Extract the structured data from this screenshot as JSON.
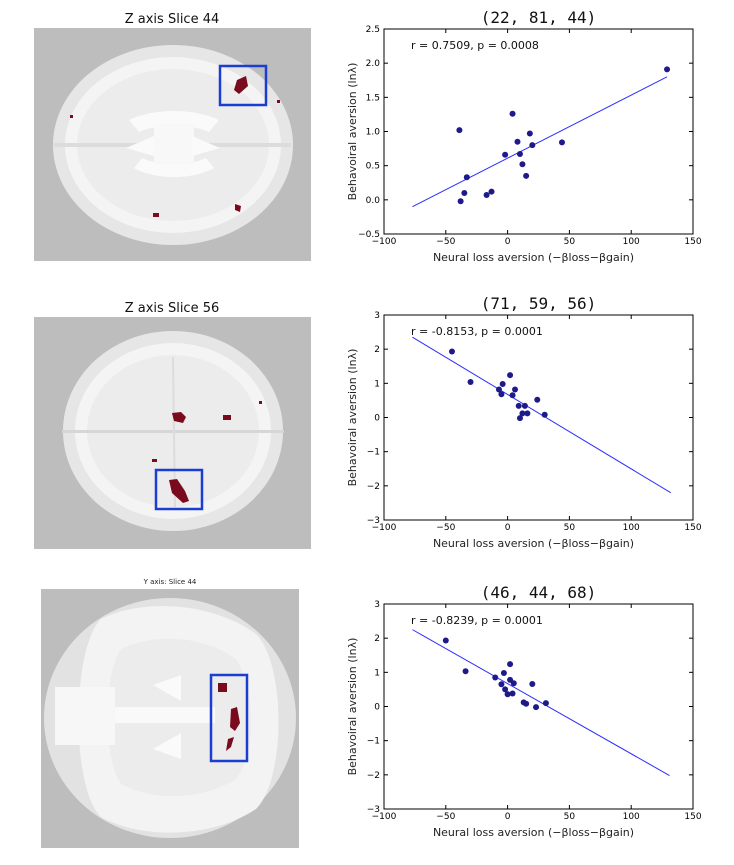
{
  "brain_panels": [
    {
      "title": "Z axis Slice 44",
      "view": "axial"
    },
    {
      "title": "Z axis Slice 56",
      "view": "axial"
    },
    {
      "title": "Y axis: Slice 44",
      "view": "coronal"
    }
  ],
  "colors": {
    "scatter": "#1f1a8a",
    "fit_line": "#2d2dff",
    "highlight_box": "#1a3fd0",
    "blob": "#7a0a1e",
    "brain_bg": "#bdbdbd"
  },
  "chart_data": [
    {
      "type": "scatter",
      "title": "(22,  81,  44)",
      "stat": "r = 0.7509, p = 0.0008",
      "xlabel": "Neural loss aversion (−βloss−βgain)",
      "ylabel": "Behavoiral aversion (lnλ)",
      "xlim": [
        -100,
        150
      ],
      "ylim": [
        -0.5,
        2.5
      ],
      "xticks": [
        -100,
        -50,
        0,
        50,
        100,
        150
      ],
      "yticks": [
        -0.5,
        0.0,
        0.5,
        1.0,
        1.5,
        2.0,
        2.5
      ],
      "ytick_labels": [
        "−0.5",
        "0.0",
        "0.5",
        "1.0",
        "1.5",
        "2.0",
        "2.5"
      ],
      "xtick_labels": [
        "−100",
        "−50",
        "0",
        "50",
        "100",
        "150"
      ],
      "points": [
        [
          -39,
          1.02
        ],
        [
          -38,
          -0.02
        ],
        [
          -35,
          0.1
        ],
        [
          -33,
          0.33
        ],
        [
          -17,
          0.07
        ],
        [
          -13,
          0.12
        ],
        [
          -2,
          0.66
        ],
        [
          4,
          1.26
        ],
        [
          8,
          0.85
        ],
        [
          10,
          0.67
        ],
        [
          12,
          0.52
        ],
        [
          15,
          0.35
        ],
        [
          18,
          0.97
        ],
        [
          20,
          0.8
        ],
        [
          44,
          0.84
        ],
        [
          129,
          1.91
        ]
      ],
      "fit": [
        [
          -77,
          -0.1
        ],
        [
          129,
          1.8
        ]
      ]
    },
    {
      "type": "scatter",
      "title": "(71,  59,  56)",
      "stat": "r = -0.8153, p = 0.0001",
      "xlabel": "Neural loss aversion (−βloss−βgain)",
      "ylabel": "Behavoiral aversion (lnλ)",
      "xlim": [
        -100,
        150
      ],
      "ylim": [
        -3,
        3
      ],
      "xticks": [
        -100,
        -50,
        0,
        50,
        100,
        150
      ],
      "yticks": [
        -3,
        -2,
        -1,
        0,
        1,
        2,
        3
      ],
      "ytick_labels": [
        "−3",
        "−2",
        "−1",
        "0",
        "1",
        "2",
        "3"
      ],
      "xtick_labels": [
        "−100",
        "−50",
        "0",
        "50",
        "100",
        "150"
      ],
      "points": [
        [
          -45,
          1.93
        ],
        [
          -30,
          1.04
        ],
        [
          -7,
          0.82
        ],
        [
          -5,
          0.68
        ],
        [
          -4,
          0.98
        ],
        [
          2,
          1.24
        ],
        [
          4,
          0.65
        ],
        [
          6,
          0.82
        ],
        [
          9,
          0.34
        ],
        [
          10,
          -0.02
        ],
        [
          12,
          0.12
        ],
        [
          14,
          0.34
        ],
        [
          16,
          0.12
        ],
        [
          24,
          0.52
        ],
        [
          30,
          0.08
        ]
      ],
      "fit": [
        [
          -77,
          2.35
        ],
        [
          132,
          -2.2
        ]
      ]
    },
    {
      "type": "scatter",
      "title": "(46,  44,  68)",
      "stat": "r = -0.8239, p = 0.0001",
      "xlabel": "Neural loss aversion (−βloss−βgain)",
      "ylabel": "Behavoiral aversion (lnλ)",
      "xlim": [
        -100,
        150
      ],
      "ylim": [
        -3,
        3
      ],
      "xticks": [
        -100,
        -50,
        0,
        50,
        100,
        150
      ],
      "yticks": [
        -3,
        -2,
        -1,
        0,
        1,
        2,
        3
      ],
      "ytick_labels": [
        "−3",
        "−2",
        "−1",
        "0",
        "1",
        "2",
        "3"
      ],
      "xtick_labels": [
        "−100",
        "−50",
        "0",
        "50",
        "100",
        "150"
      ],
      "points": [
        [
          -50,
          1.93
        ],
        [
          -34,
          1.03
        ],
        [
          -10,
          0.85
        ],
        [
          -5,
          0.65
        ],
        [
          -3,
          0.98
        ],
        [
          -2,
          0.5
        ],
        [
          0,
          0.36
        ],
        [
          2,
          1.24
        ],
        [
          2,
          0.78
        ],
        [
          4,
          0.38
        ],
        [
          5,
          0.68
        ],
        [
          13,
          0.12
        ],
        [
          15,
          0.08
        ],
        [
          20,
          0.66
        ],
        [
          23,
          -0.02
        ],
        [
          31,
          0.1
        ]
      ],
      "fit": [
        [
          -77,
          2.25
        ],
        [
          131,
          -2.02
        ]
      ]
    }
  ]
}
